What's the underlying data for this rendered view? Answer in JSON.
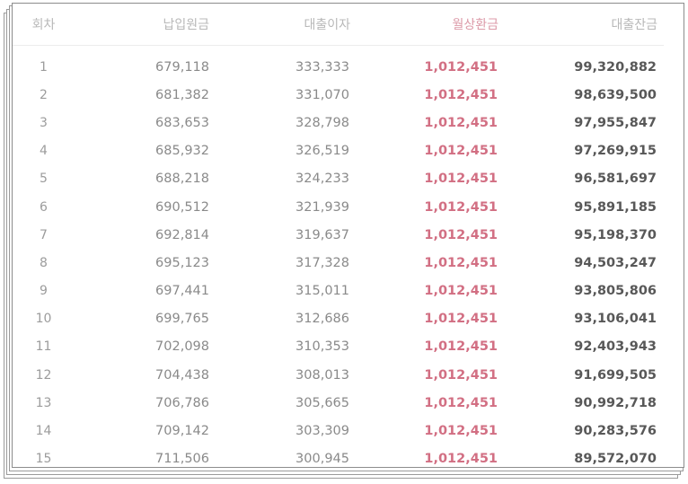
{
  "header": {
    "round": "회차",
    "principal": "납입원금",
    "interest": "대출이자",
    "monthly_payment": "월상환금",
    "balance": "대출잔금"
  },
  "accent_color": "#d26f83",
  "rows": [
    {
      "round": "1",
      "principal": "679,118",
      "interest": "333,333",
      "payment": "1,012,451",
      "balance": "99,320,882"
    },
    {
      "round": "2",
      "principal": "681,382",
      "interest": "331,070",
      "payment": "1,012,451",
      "balance": "98,639,500"
    },
    {
      "round": "3",
      "principal": "683,653",
      "interest": "328,798",
      "payment": "1,012,451",
      "balance": "97,955,847"
    },
    {
      "round": "4",
      "principal": "685,932",
      "interest": "326,519",
      "payment": "1,012,451",
      "balance": "97,269,915"
    },
    {
      "round": "5",
      "principal": "688,218",
      "interest": "324,233",
      "payment": "1,012,451",
      "balance": "96,581,697"
    },
    {
      "round": "6",
      "principal": "690,512",
      "interest": "321,939",
      "payment": "1,012,451",
      "balance": "95,891,185"
    },
    {
      "round": "7",
      "principal": "692,814",
      "interest": "319,637",
      "payment": "1,012,451",
      "balance": "95,198,370"
    },
    {
      "round": "8",
      "principal": "695,123",
      "interest": "317,328",
      "payment": "1,012,451",
      "balance": "94,503,247"
    },
    {
      "round": "9",
      "principal": "697,441",
      "interest": "315,011",
      "payment": "1,012,451",
      "balance": "93,805,806"
    },
    {
      "round": "10",
      "principal": "699,765",
      "interest": "312,686",
      "payment": "1,012,451",
      "balance": "93,106,041"
    },
    {
      "round": "11",
      "principal": "702,098",
      "interest": "310,353",
      "payment": "1,012,451",
      "balance": "92,403,943"
    },
    {
      "round": "12",
      "principal": "704,438",
      "interest": "308,013",
      "payment": "1,012,451",
      "balance": "91,699,505"
    },
    {
      "round": "13",
      "principal": "706,786",
      "interest": "305,665",
      "payment": "1,012,451",
      "balance": "90,992,718"
    },
    {
      "round": "14",
      "principal": "709,142",
      "interest": "303,309",
      "payment": "1,012,451",
      "balance": "90,283,576"
    },
    {
      "round": "15",
      "principal": "711,506",
      "interest": "300,945",
      "payment": "1,012,451",
      "balance": "89,572,070"
    }
  ]
}
